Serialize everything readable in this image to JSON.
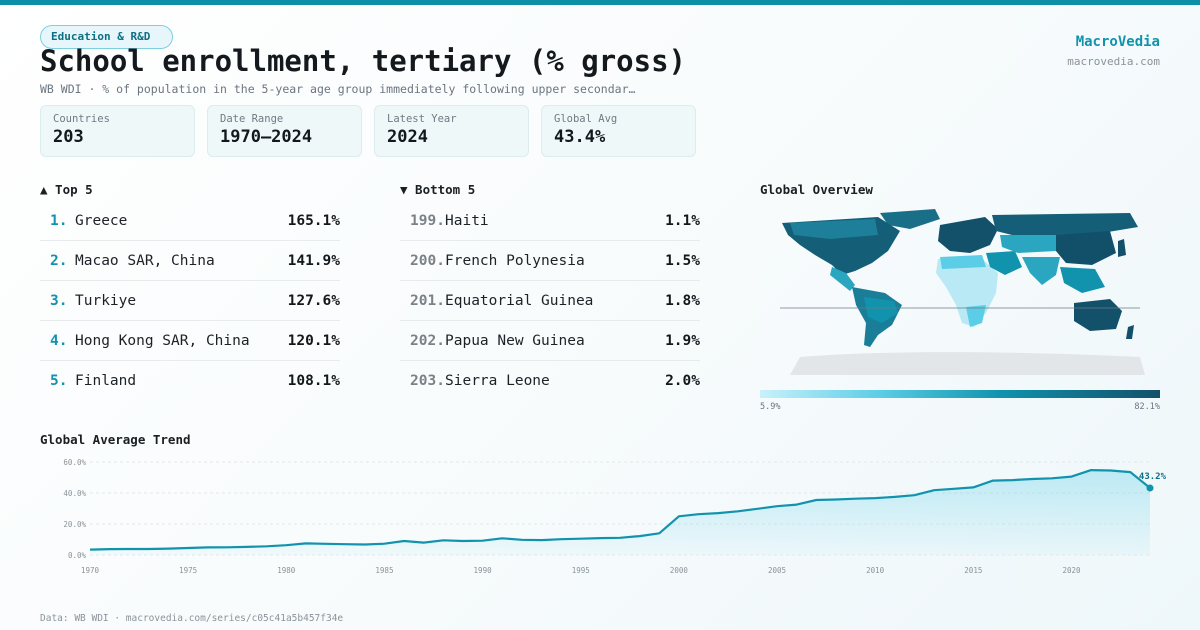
{
  "header": {
    "badge": "Education & R&D",
    "title": "School enrollment, tertiary (% gross)",
    "subtitle": "WB WDI · % of population in the 5-year age group immediately following upper secondar…",
    "brand": "MacroVedia",
    "brand_url": "macrovedia.com"
  },
  "stats": [
    {
      "label": "Countries",
      "value": "203"
    },
    {
      "label": "Date Range",
      "value": "1970–2024"
    },
    {
      "label": "Latest Year",
      "value": "2024"
    },
    {
      "label": "Global Avg",
      "value": "43.4%"
    }
  ],
  "top5": {
    "heading": "▲ Top 5",
    "items": [
      {
        "rank": "1.",
        "name": "Greece",
        "value": "165.1%"
      },
      {
        "rank": "2.",
        "name": "Macao SAR, China",
        "value": "141.9%"
      },
      {
        "rank": "3.",
        "name": "Turkiye",
        "value": "127.6%"
      },
      {
        "rank": "4.",
        "name": "Hong Kong SAR, China",
        "value": "120.1%"
      },
      {
        "rank": "5.",
        "name": "Finland",
        "value": "108.1%"
      }
    ]
  },
  "bottom5": {
    "heading": "▼ Bottom 5",
    "items": [
      {
        "rank": "199.",
        "name": "Haiti",
        "value": "1.1%"
      },
      {
        "rank": "200.",
        "name": "French Polynesia",
        "value": "1.5%"
      },
      {
        "rank": "201.",
        "name": "Equatorial Guinea",
        "value": "1.8%"
      },
      {
        "rank": "202.",
        "name": "Papua New Guinea",
        "value": "1.9%"
      },
      {
        "rank": "203.",
        "name": "Sierra Leone",
        "value": "2.0%"
      }
    ]
  },
  "map": {
    "title": "Global Overview",
    "legend_min": "5.9%",
    "legend_max": "82.1%",
    "colors": {
      "low": "#c9f1fb",
      "mid": "#1193ad",
      "high": "#12506a",
      "nodata": "#e3e6e8"
    }
  },
  "trend": {
    "title": "Global Average Trend",
    "end_label": "43.2%"
  },
  "chart_data": {
    "type": "area",
    "title": "Global Average Trend",
    "x": [
      1970,
      1971,
      1972,
      1973,
      1974,
      1975,
      1976,
      1977,
      1978,
      1979,
      1980,
      1981,
      1982,
      1983,
      1984,
      1985,
      1986,
      1987,
      1988,
      1989,
      1990,
      1991,
      1992,
      1993,
      1994,
      1995,
      1996,
      1997,
      1998,
      1999,
      2000,
      2001,
      2002,
      2003,
      2004,
      2005,
      2006,
      2007,
      2008,
      2009,
      2010,
      2011,
      2012,
      2013,
      2014,
      2015,
      2016,
      2017,
      2018,
      2019,
      2020,
      2021,
      2022,
      2023,
      2024
    ],
    "series": [
      {
        "values": [
          3.5,
          3.8,
          3.9,
          3.9,
          4.1,
          4.5,
          4.9,
          5.0,
          5.2,
          5.6,
          6.3,
          7.5,
          7.2,
          7.0,
          6.8,
          7.3,
          9.0,
          8.0,
          9.5,
          9.0,
          9.2,
          10.8,
          9.8,
          9.6,
          10.2,
          10.5,
          10.9,
          11.1,
          12.2,
          14.0,
          25.0,
          26.3,
          27.0,
          28.2,
          29.8,
          31.5,
          32.5,
          35.5,
          35.8,
          36.3,
          36.7,
          37.5,
          38.6,
          41.8,
          42.7,
          43.6,
          48.0,
          48.3,
          49.0,
          49.5,
          50.6,
          54.8,
          54.5,
          53.5,
          43.2
        ]
      }
    ],
    "yticks": [
      "0.0%",
      "20.0%",
      "40.0%",
      "60.0%"
    ],
    "xticks": [
      "1970",
      "1975",
      "1980",
      "1985",
      "1990",
      "1995",
      "2000",
      "2005",
      "2010",
      "2015",
      "2020"
    ],
    "ylim": [
      0,
      60
    ],
    "xlim": [
      1970,
      2024
    ],
    "grid": true,
    "color": "#1193ad"
  },
  "footer": "Data: WB WDI · macrovedia.com/series/c05c41a5b457f34e"
}
